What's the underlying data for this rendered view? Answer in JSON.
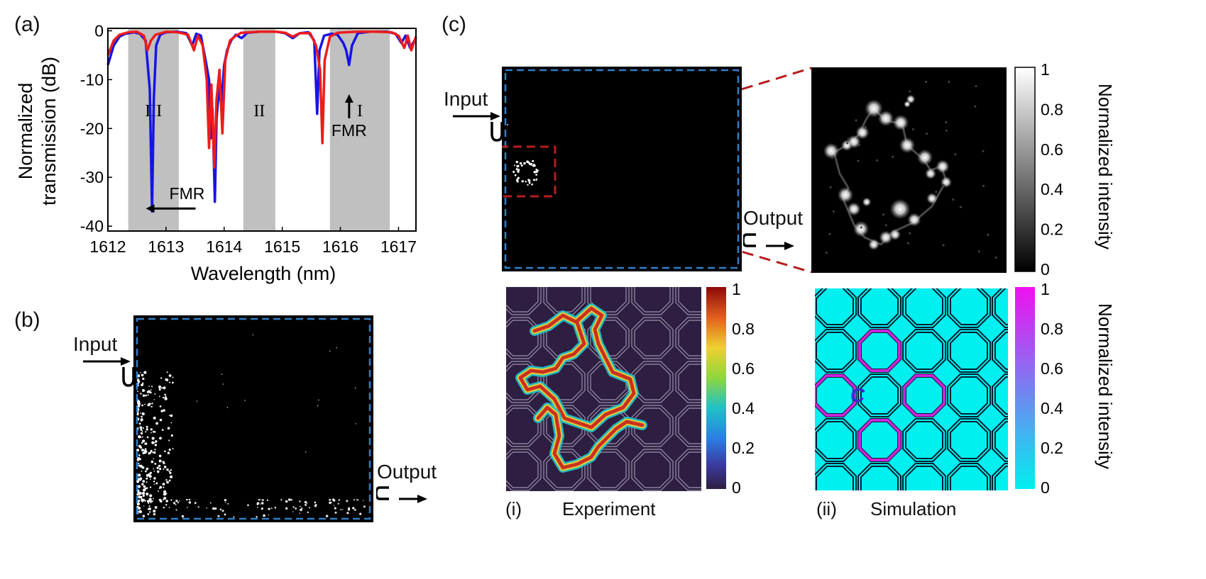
{
  "panels": {
    "a": "(a)",
    "b": "(b)",
    "c": "(c)",
    "ci": "(i)",
    "cii": "(ii)"
  },
  "chart_data": {
    "type": "line",
    "title": "",
    "xlabel": "Wavelength (nm)",
    "ylabel_line1": "Normalized",
    "ylabel_line2": "transmission (dB)",
    "xlim": [
      1612,
      1617.3
    ],
    "ylim": [
      -41,
      0.5
    ],
    "xticks": [
      "1612",
      "1613",
      "1614",
      "1615",
      "1616",
      "1617"
    ],
    "yticks": [
      "0",
      "-10",
      "-20",
      "-30",
      "-40"
    ],
    "bands": [
      {
        "label": "III",
        "x0": 1612.35,
        "x1": 1613.22
      },
      {
        "label": "II",
        "x0": 1614.33,
        "x1": 1614.88
      },
      {
        "label": "I",
        "x0": 1615.82,
        "x1": 1616.85
      }
    ],
    "series": [
      {
        "name": "blue",
        "color": "#1515e6",
        "points": [
          [
            1612,
            -7
          ],
          [
            1612.1,
            -3
          ],
          [
            1612.2,
            -1.2
          ],
          [
            1612.3,
            -0.6
          ],
          [
            1612.45,
            -0.3
          ],
          [
            1612.55,
            -0.6
          ],
          [
            1612.65,
            -2
          ],
          [
            1612.72,
            -12
          ],
          [
            1612.76,
            -37
          ],
          [
            1612.79,
            -14
          ],
          [
            1612.83,
            -3
          ],
          [
            1612.9,
            -0.8
          ],
          [
            1613.0,
            -0.3
          ],
          [
            1613.2,
            -0.2
          ],
          [
            1613.35,
            -0.5
          ],
          [
            1613.45,
            -3
          ],
          [
            1613.52,
            -0.6
          ],
          [
            1613.6,
            -1
          ],
          [
            1613.68,
            -6
          ],
          [
            1613.74,
            -10
          ],
          [
            1613.77,
            -22
          ],
          [
            1613.8,
            -16
          ],
          [
            1613.84,
            -35
          ],
          [
            1613.87,
            -18
          ],
          [
            1613.91,
            -12
          ],
          [
            1613.95,
            -15
          ],
          [
            1614.0,
            -7
          ],
          [
            1614.05,
            -4
          ],
          [
            1614.12,
            -2
          ],
          [
            1614.2,
            -0.8
          ],
          [
            1614.3,
            -1.5
          ],
          [
            1614.4,
            -0.4
          ],
          [
            1614.6,
            -0.2
          ],
          [
            1614.9,
            -0.2
          ],
          [
            1615.05,
            -0.5
          ],
          [
            1615.18,
            -1.5
          ],
          [
            1615.3,
            -0.5
          ],
          [
            1615.45,
            -0.3
          ],
          [
            1615.55,
            -2
          ],
          [
            1615.6,
            -17
          ],
          [
            1615.64,
            -4
          ],
          [
            1615.72,
            -1
          ],
          [
            1615.85,
            -0.6
          ],
          [
            1615.95,
            -0.8
          ],
          [
            1616.05,
            -2.5
          ],
          [
            1616.1,
            -4
          ],
          [
            1616.15,
            -7
          ],
          [
            1616.2,
            -3
          ],
          [
            1616.3,
            -0.5
          ],
          [
            1616.5,
            -0.2
          ],
          [
            1616.8,
            -0.2
          ],
          [
            1616.95,
            -0.6
          ],
          [
            1617.05,
            -2.5
          ],
          [
            1617.12,
            -1
          ],
          [
            1617.2,
            -3.5
          ],
          [
            1617.3,
            -1.5
          ]
        ]
      },
      {
        "name": "red",
        "color": "#ef1b1b",
        "points": [
          [
            1612,
            -5
          ],
          [
            1612.1,
            -2
          ],
          [
            1612.2,
            -0.8
          ],
          [
            1612.35,
            -0.3
          ],
          [
            1612.5,
            -0.2
          ],
          [
            1612.62,
            -1
          ],
          [
            1612.68,
            -4
          ],
          [
            1612.74,
            -2
          ],
          [
            1612.82,
            -0.8
          ],
          [
            1613.0,
            -0.2
          ],
          [
            1613.2,
            -0.3
          ],
          [
            1613.38,
            -0.8
          ],
          [
            1613.48,
            -4
          ],
          [
            1613.55,
            -1
          ],
          [
            1613.63,
            -3
          ],
          [
            1613.7,
            -10
          ],
          [
            1613.74,
            -24
          ],
          [
            1613.78,
            -11
          ],
          [
            1613.83,
            -28
          ],
          [
            1613.87,
            -14
          ],
          [
            1613.92,
            -8
          ],
          [
            1613.97,
            -21
          ],
          [
            1614.02,
            -6
          ],
          [
            1614.1,
            -2
          ],
          [
            1614.2,
            -1
          ],
          [
            1614.3,
            -0.4
          ],
          [
            1614.6,
            -0.2
          ],
          [
            1614.9,
            -0.2
          ],
          [
            1615.05,
            -0.4
          ],
          [
            1615.18,
            -1.2
          ],
          [
            1615.3,
            -0.5
          ],
          [
            1615.48,
            -0.5
          ],
          [
            1615.58,
            -3
          ],
          [
            1615.65,
            -8
          ],
          [
            1615.69,
            -23
          ],
          [
            1615.73,
            -6
          ],
          [
            1615.82,
            -1.2
          ],
          [
            1615.95,
            -0.4
          ],
          [
            1616.1,
            -0.3
          ],
          [
            1616.3,
            -0.2
          ],
          [
            1616.6,
            -0.2
          ],
          [
            1616.88,
            -0.3
          ],
          [
            1617.0,
            -1
          ],
          [
            1617.1,
            -3.5
          ],
          [
            1617.16,
            -1
          ],
          [
            1617.22,
            -4
          ],
          [
            1617.3,
            -1.2
          ]
        ]
      }
    ],
    "annotations": [
      {
        "text": "FMR",
        "at": [
          1613.02,
          -34.5
        ],
        "arrow": "left"
      },
      {
        "text": "FMR",
        "at": [
          1616.15,
          -15
        ],
        "arrow": "up"
      }
    ]
  },
  "panel_b": {
    "input": "Input",
    "output": "Output"
  },
  "panel_c": {
    "input": "Input",
    "output": "Output",
    "colorbar_gray": {
      "ticks": [
        "1",
        "0.8",
        "0.6",
        "0.4",
        "0.2",
        "0"
      ],
      "label": "Normalized intensity"
    },
    "colorbar_jet": {
      "ticks": [
        "1",
        "0.8",
        "0.6",
        "0.4",
        "0.2",
        "0"
      ]
    },
    "colorbar_sim": {
      "ticks": [
        "1",
        "0.8",
        "0.6",
        "0.4",
        "0.2",
        "0"
      ],
      "label": "Normalized intensity"
    },
    "experiment": "Experiment",
    "simulation": "Simulation",
    "cell_label": "C",
    "colors": {
      "frame_dash": "#2f7fc8",
      "zoom_dash": "#b51e1e",
      "sim_bg": "#00f0f0",
      "sim_path": "#c825d8",
      "jet_bg": "#2e1e42"
    }
  }
}
